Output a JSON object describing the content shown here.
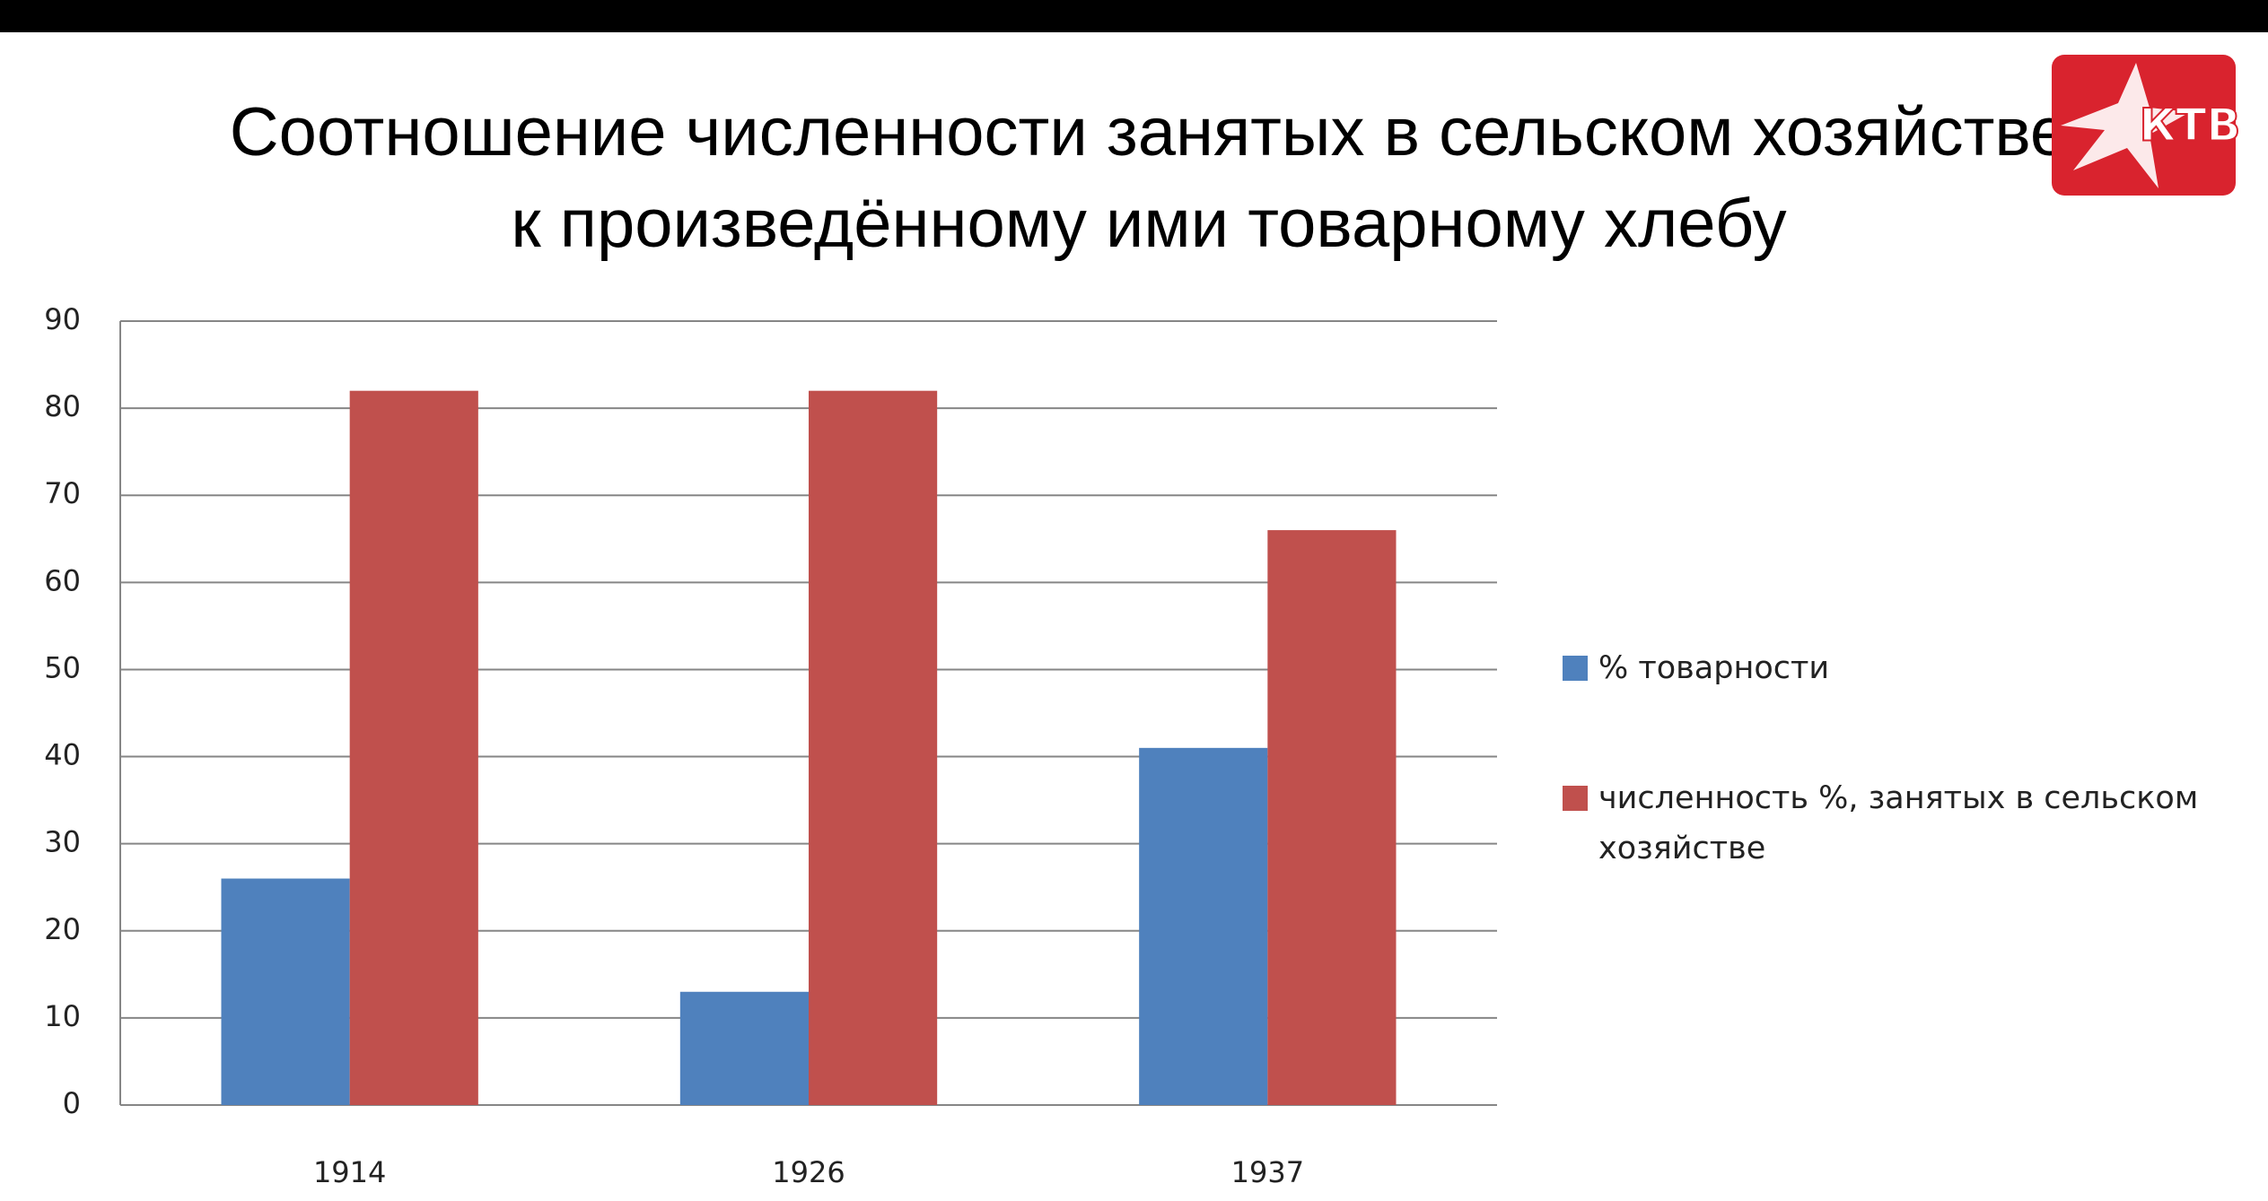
{
  "chart_data": {
    "type": "bar",
    "title": [
      "Соотношение численности занятых в сельском хозяйстве",
      "к произведённому ими товарному хлебу"
    ],
    "logo": "КТВ",
    "categories": [
      "1914",
      "1926",
      "1937"
    ],
    "series": [
      {
        "name": "% товарности",
        "color": "#4f81bd",
        "values": [
          26,
          13,
          41
        ]
      },
      {
        "name": "численность %, занятых в сельском хозяйстве",
        "color": "#c0504d",
        "values": [
          82,
          82,
          66
        ]
      }
    ],
    "ylim": [
      0,
      90
    ],
    "yticks": [
      0,
      10,
      20,
      30,
      40,
      50,
      60,
      70,
      80,
      90
    ],
    "grid": true,
    "legend": "right"
  }
}
